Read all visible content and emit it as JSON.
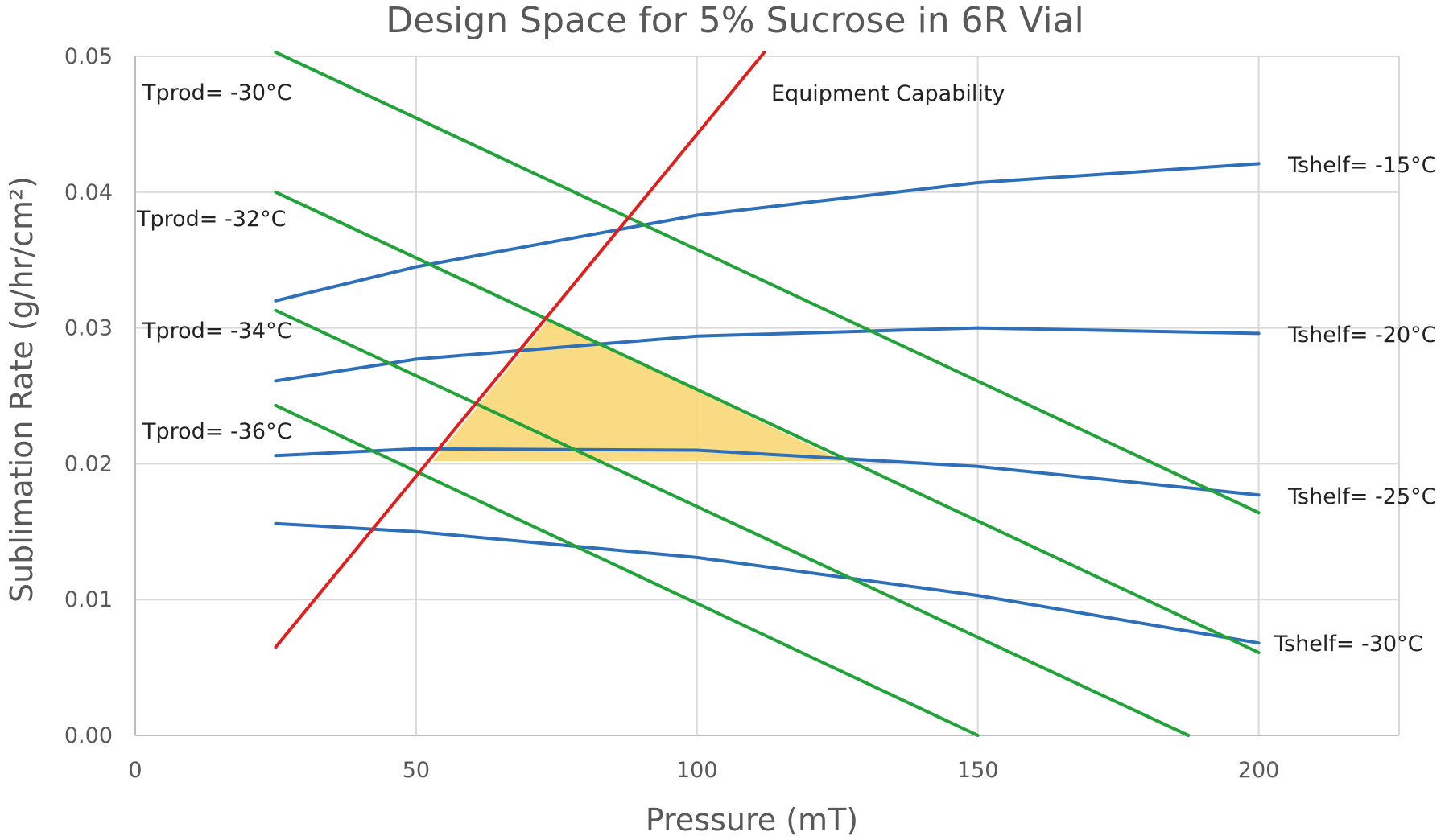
{
  "chart_data": {
    "type": "line",
    "title": "Design Space for 5% Sucrose in 6R Vial",
    "xlabel": "Pressure (mT)",
    "ylabel": "Sublimation Rate (g/hr/cm²)",
    "xlim": [
      0,
      225
    ],
    "ylim": [
      0,
      0.05
    ],
    "xticks": [
      0,
      50,
      100,
      150,
      200
    ],
    "yticks": [
      0,
      0.01,
      0.02,
      0.03,
      0.04,
      0.05
    ],
    "x_tick_labels": [
      "0",
      "50",
      "100",
      "150",
      "200"
    ],
    "y_tick_labels": [
      "0.00",
      "0.01",
      "0.02",
      "0.03",
      "0.04",
      "0.05"
    ],
    "grid": true,
    "colors": {
      "shelf": "#2e6fba",
      "product": "#22a33a",
      "equipment": "#e0201f",
      "design_space": "#f8d777"
    },
    "shelf_temperature_series": [
      {
        "label": "Tshelf= -15°C",
        "x": [
          25,
          50,
          100,
          150,
          200
        ],
        "y": [
          0.032,
          0.0345,
          0.0383,
          0.0407,
          0.0421
        ]
      },
      {
        "label": "Tshelf= -20°C",
        "x": [
          25,
          50,
          100,
          150,
          200
        ],
        "y": [
          0.0261,
          0.0277,
          0.0294,
          0.03,
          0.0296
        ]
      },
      {
        "label": "Tshelf= -25°C",
        "x": [
          25,
          50,
          100,
          150,
          200
        ],
        "y": [
          0.0206,
          0.0211,
          0.021,
          0.0198,
          0.0177
        ]
      },
      {
        "label": "Tshelf= -30°C",
        "x": [
          25,
          50,
          100,
          150,
          200
        ],
        "y": [
          0.0156,
          0.015,
          0.0131,
          0.0103,
          0.0068
        ]
      }
    ],
    "product_temperature_series": [
      {
        "label": "Tprod= -30°C",
        "x": [
          25,
          200
        ],
        "y": [
          0.0503,
          0.0164
        ]
      },
      {
        "label": "Tprod= -32°C",
        "x": [
          25,
          200
        ],
        "y": [
          0.04,
          0.0061
        ]
      },
      {
        "label": "Tprod= -34°C",
        "x": [
          25,
          187.5
        ],
        "y": [
          0.0313,
          0.0
        ]
      },
      {
        "label": "Tprod= -36°C",
        "x": [
          25,
          150
        ],
        "y": [
          0.0243,
          0.0
        ]
      }
    ],
    "equipment_capability": {
      "label": "Equipment Capability",
      "x": [
        25,
        112
      ],
      "y": [
        0.0065,
        0.0503
      ]
    },
    "design_space_region": {
      "x": [
        73.5,
        53,
        126
      ],
      "y": [
        0.0306,
        0.0202,
        0.0202
      ]
    }
  }
}
